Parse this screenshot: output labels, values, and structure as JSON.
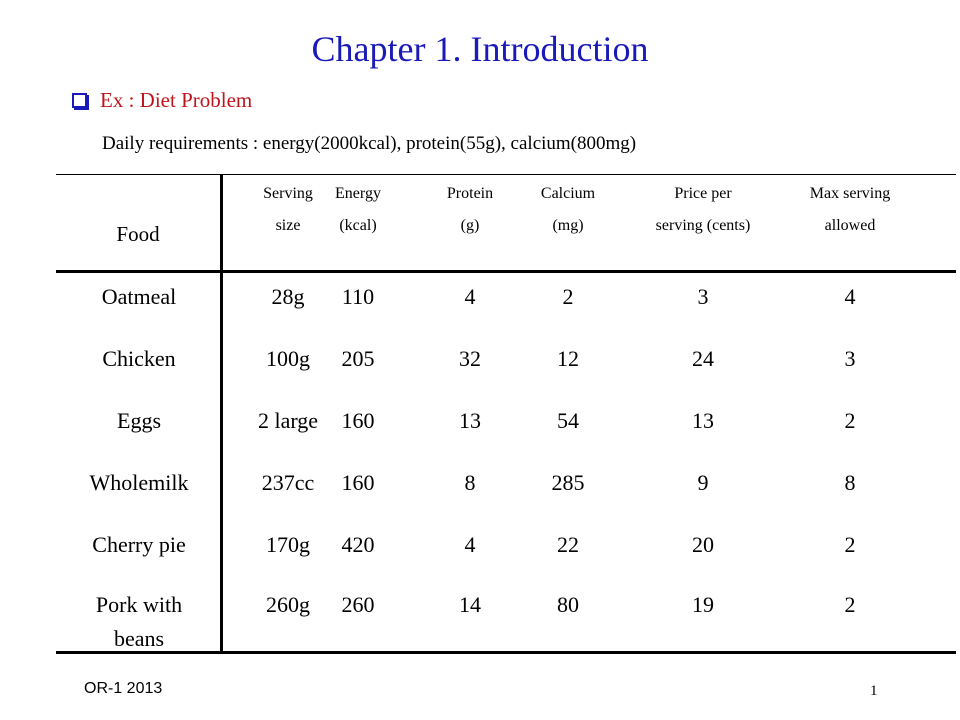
{
  "slide": {
    "title": "Chapter 1. Introduction",
    "subtitle": "Ex : Diet Problem",
    "requirements": "Daily requirements : energy(2000kcal), protein(55g), calcium(800mg)",
    "footer_left": "OR-1  2013",
    "page_number": "1"
  },
  "colors": {
    "title": "#1a1ab8",
    "subtitle": "#c0141c",
    "bullet": "#1a1ab8"
  },
  "table": {
    "food_header": "Food",
    "headers": [
      {
        "l1": "Serving",
        "l2": "size"
      },
      {
        "l1": "Energy",
        "l2": "(kcal)"
      },
      {
        "l1": "Protein",
        "l2": "(g)"
      },
      {
        "l1": "Calcium",
        "l2": "(mg)"
      },
      {
        "l1": "Price per",
        "l2": "serving (cents)"
      },
      {
        "l1": "Max serving",
        "l2": "allowed"
      }
    ],
    "rows": [
      {
        "food": "Oatmeal",
        "values": [
          "28g",
          "110",
          "4",
          "2",
          "3",
          "4"
        ]
      },
      {
        "food": "Chicken",
        "values": [
          "100g",
          "205",
          "32",
          "12",
          "24",
          "3"
        ]
      },
      {
        "food": "Eggs",
        "values": [
          "2 large",
          "160",
          "13",
          "54",
          "13",
          "2"
        ]
      },
      {
        "food": "Wholemilk",
        "values": [
          "237cc",
          "160",
          "8",
          "285",
          "9",
          "8"
        ]
      },
      {
        "food": "Cherry pie",
        "values": [
          "170g",
          "420",
          "4",
          "22",
          "20",
          "2"
        ]
      },
      {
        "food": "Pork with beans",
        "values": [
          "260g",
          "260",
          "14",
          "80",
          "19",
          "2"
        ]
      }
    ]
  }
}
